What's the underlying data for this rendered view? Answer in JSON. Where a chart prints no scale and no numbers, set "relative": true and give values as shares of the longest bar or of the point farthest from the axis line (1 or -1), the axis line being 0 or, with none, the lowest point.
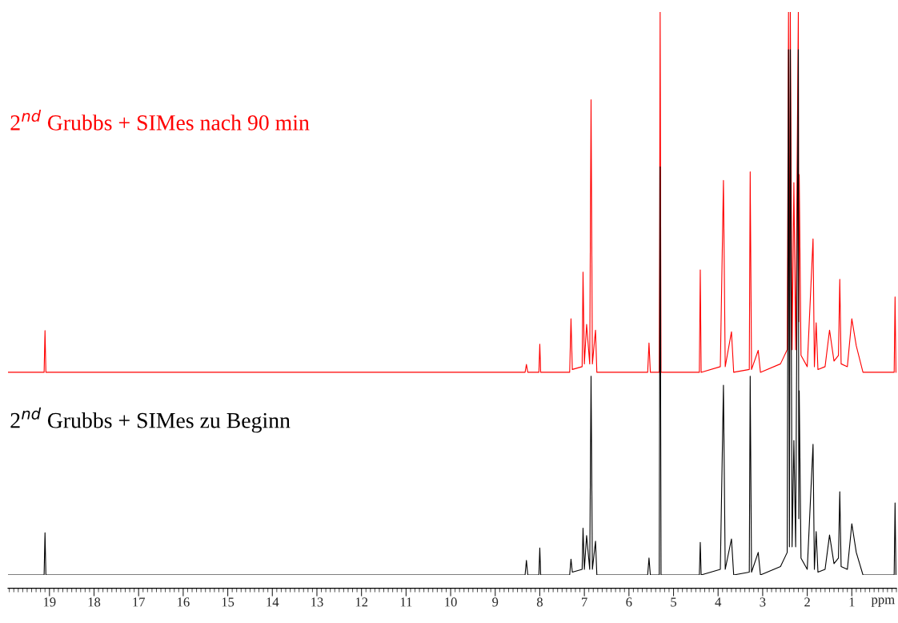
{
  "chart_data": {
    "type": "line",
    "relative": true,
    "xlabel": "ppm",
    "legend": false,
    "grid": false,
    "tick_labels": "x",
    "xlim": [
      19.93,
      0.0
    ],
    "xticks": [
      19,
      18,
      17,
      16,
      15,
      14,
      13,
      12,
      11,
      10,
      9,
      8,
      7,
      6,
      5,
      4,
      3,
      2,
      1
    ],
    "x": [
      19.93,
      19.12,
      19.1,
      19.08,
      8.33,
      8.3,
      8.27,
      8.02,
      8.0,
      7.98,
      7.33,
      7.3,
      7.27,
      7.05,
      7.03,
      7.0,
      6.95,
      6.88,
      6.85,
      6.82,
      6.75,
      6.72,
      5.58,
      5.55,
      5.52,
      5.32,
      5.3,
      5.28,
      4.42,
      4.4,
      4.38,
      3.95,
      3.88,
      3.84,
      3.7,
      3.65,
      3.3,
      3.28,
      3.25,
      3.1,
      3.05,
      2.6,
      2.45,
      2.42,
      2.4,
      2.38,
      2.34,
      2.3,
      2.26,
      2.2,
      2.19,
      2.18,
      2.14,
      2.0,
      1.87,
      1.84,
      1.8,
      1.76,
      1.6,
      1.5,
      1.4,
      1.3,
      1.27,
      1.24,
      1.1,
      1.0,
      0.9,
      0.75,
      0.05,
      0.03,
      0.01
    ],
    "series": [
      {
        "name": "2$^{nd}$ Grubbs + SIMes zu Beginn",
        "color": "#000000",
        "values": [
          0,
          0,
          0.075,
          0,
          0,
          0.026,
          0,
          0,
          0.048,
          0,
          0,
          0.028,
          0.005,
          0.01,
          0.083,
          0.01,
          0.07,
          0.01,
          0.353,
          0.01,
          0.06,
          0,
          0,
          0.03,
          0,
          0,
          0.725,
          0,
          0,
          0.058,
          0,
          0.01,
          0.337,
          0.01,
          0.064,
          0,
          0.005,
          0.353,
          0.005,
          0.04,
          0,
          0.015,
          0.04,
          0.933,
          0.05,
          0.933,
          0.05,
          0.239,
          0.05,
          0.933,
          0.1,
          0.327,
          0.03,
          0.01,
          0.232,
          0.01,
          0.077,
          0.005,
          0.01,
          0.071,
          0.02,
          0.03,
          0.148,
          0.015,
          0.01,
          0.091,
          0.04,
          0,
          0,
          0.128,
          0
        ]
      },
      {
        "name": "2$^{nd}$ Grubbs + SIMes nach 90 min",
        "color": "#ff0000",
        "values": [
          0.36,
          0.36,
          0.434,
          0.36,
          0.36,
          0.374,
          0.36,
          0.36,
          0.41,
          0.36,
          0.36,
          0.455,
          0.365,
          0.37,
          0.538,
          0.375,
          0.445,
          0.375,
          0.844,
          0.375,
          0.435,
          0.36,
          0.36,
          0.412,
          0.36,
          0.36,
          1,
          0.36,
          0.36,
          0.542,
          0.36,
          0.37,
          0.701,
          0.37,
          0.432,
          0.36,
          0.365,
          0.716,
          0.365,
          0.399,
          0.36,
          0.375,
          0.4,
          1,
          0.4,
          1,
          0.4,
          0.697,
          0.4,
          1,
          0.45,
          0.711,
          0.39,
          0.37,
          0.597,
          0.37,
          0.448,
          0.365,
          0.37,
          0.435,
          0.38,
          0.39,
          0.525,
          0.375,
          0.37,
          0.455,
          0.407,
          0.36,
          0.36,
          0.494,
          0.36
        ]
      }
    ]
  }
}
